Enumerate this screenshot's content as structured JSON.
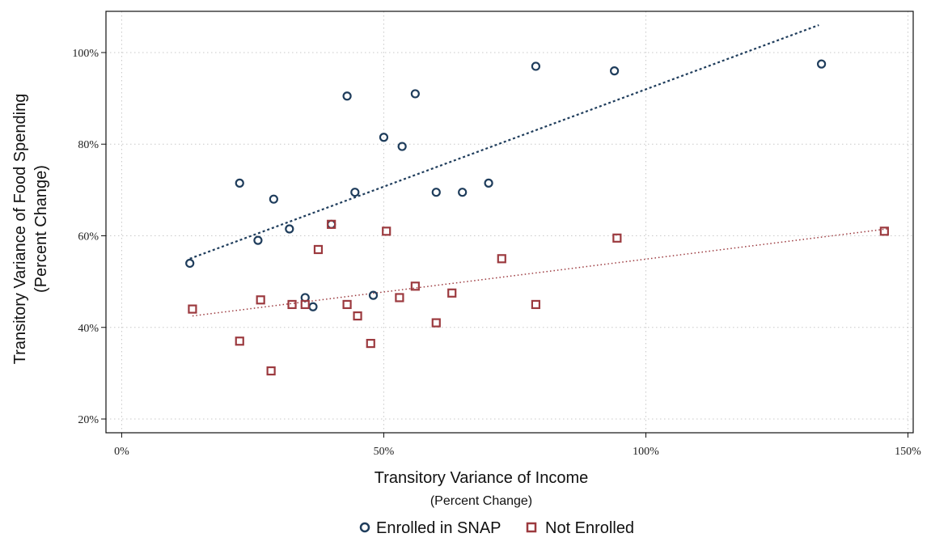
{
  "chart_data": {
    "type": "scatter",
    "xlabel": "Transitory Variance of Income",
    "xlabel_sub": "(Percent Change)",
    "ylabel": "Transitory Variance of Food Spending",
    "ylabel_sub": "(Percent Change)",
    "xlim": [
      -3,
      151
    ],
    "ylim": [
      17,
      109
    ],
    "x_ticks": [
      {
        "value": 0,
        "label": "0%"
      },
      {
        "value": 50,
        "label": "50%"
      },
      {
        "value": 100,
        "label": "100%"
      },
      {
        "value": 150,
        "label": "150%"
      }
    ],
    "y_ticks": [
      {
        "value": 20,
        "label": "20%"
      },
      {
        "value": 40,
        "label": "40%"
      },
      {
        "value": 60,
        "label": "60%"
      },
      {
        "value": 80,
        "label": "80%"
      },
      {
        "value": 100,
        "label": "100%"
      }
    ],
    "grid": true,
    "legend_position": "bottom",
    "series": [
      {
        "name": "Enrolled in SNAP",
        "marker": "circle",
        "color": "#1f3d5c",
        "points": [
          {
            "x": 13,
            "y": 54
          },
          {
            "x": 22.5,
            "y": 71.5
          },
          {
            "x": 26,
            "y": 59
          },
          {
            "x": 29,
            "y": 68
          },
          {
            "x": 32,
            "y": 61.5
          },
          {
            "x": 35,
            "y": 46.5
          },
          {
            "x": 36.5,
            "y": 44.5
          },
          {
            "x": 40,
            "y": 62.5
          },
          {
            "x": 43,
            "y": 90.5
          },
          {
            "x": 44.5,
            "y": 69.5
          },
          {
            "x": 48,
            "y": 47
          },
          {
            "x": 50,
            "y": 81.5
          },
          {
            "x": 53.5,
            "y": 79.5
          },
          {
            "x": 56,
            "y": 91
          },
          {
            "x": 60,
            "y": 69.5
          },
          {
            "x": 65,
            "y": 69.5
          },
          {
            "x": 70,
            "y": 71.5
          },
          {
            "x": 79,
            "y": 97
          },
          {
            "x": 94,
            "y": 96
          },
          {
            "x": 133.5,
            "y": 97.5
          }
        ],
        "trend": {
          "x": [
            13,
            133
          ],
          "y": [
            55,
            106
          ]
        }
      },
      {
        "name": "Not Enrolled",
        "marker": "square",
        "color": "#9c3a3f",
        "points": [
          {
            "x": 13.5,
            "y": 44
          },
          {
            "x": 22.5,
            "y": 37
          },
          {
            "x": 26.5,
            "y": 46
          },
          {
            "x": 28.5,
            "y": 30.5
          },
          {
            "x": 32.5,
            "y": 45
          },
          {
            "x": 35,
            "y": 45
          },
          {
            "x": 37.5,
            "y": 57
          },
          {
            "x": 40,
            "y": 62.5
          },
          {
            "x": 43,
            "y": 45
          },
          {
            "x": 45,
            "y": 42.5
          },
          {
            "x": 47.5,
            "y": 36.5
          },
          {
            "x": 50.5,
            "y": 61
          },
          {
            "x": 53,
            "y": 46.5
          },
          {
            "x": 56,
            "y": 49
          },
          {
            "x": 60,
            "y": 41
          },
          {
            "x": 63,
            "y": 47.5
          },
          {
            "x": 72.5,
            "y": 55
          },
          {
            "x": 79,
            "y": 45
          },
          {
            "x": 94.5,
            "y": 59.5
          },
          {
            "x": 145.5,
            "y": 61
          }
        ],
        "trend": {
          "x": [
            13.5,
            146
          ],
          "y": [
            42.5,
            61.5
          ]
        }
      }
    ]
  }
}
